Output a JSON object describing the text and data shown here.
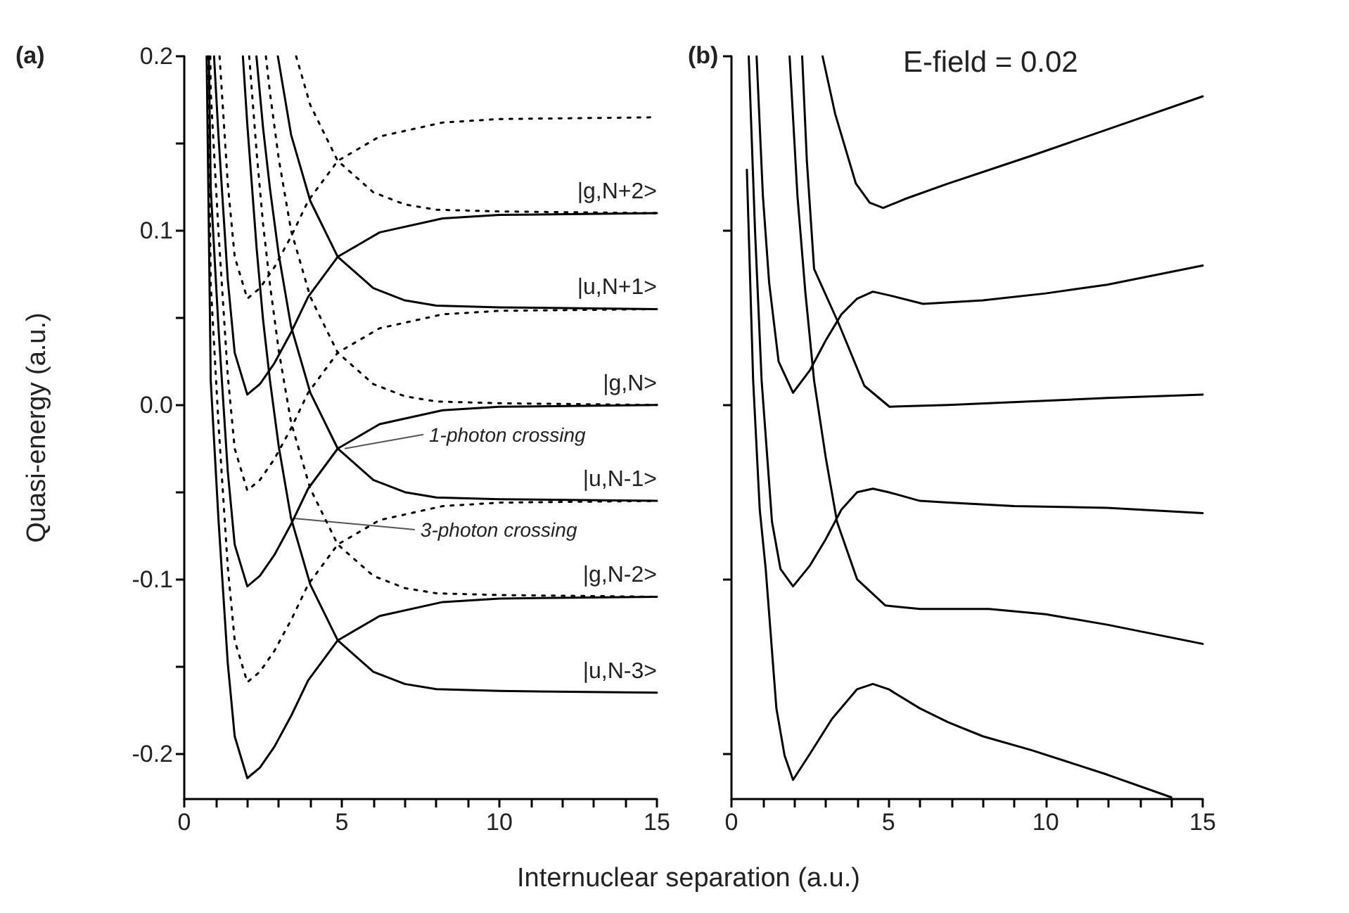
{
  "chart_data": [
    {
      "type": "line",
      "title": "(a)",
      "xlabel": "Internuclear separation (a.u.)",
      "ylabel": "Quasi-energy (a.u.)",
      "marker": "none",
      "xlim": [
        0,
        15
      ],
      "ylim": [
        -0.226,
        0.2
      ],
      "xticks": [
        0,
        {
          "value": 1,
          "label": null
        },
        {
          "value": 2,
          "label": null
        },
        {
          "value": 3,
          "label": null
        },
        {
          "value": 4,
          "label": null
        },
        5,
        {
          "value": 6,
          "label": null
        },
        {
          "value": 7,
          "label": null
        },
        {
          "value": 8,
          "label": null
        },
        {
          "value": 9,
          "label": null
        },
        10,
        {
          "value": 11,
          "label": null
        },
        {
          "value": 12,
          "label": null
        },
        {
          "value": 13,
          "label": null
        },
        {
          "value": 14,
          "label": null
        },
        15
      ],
      "yticks": [
        -0.2,
        {
          "value": -0.15,
          "label": null
        },
        -0.1,
        {
          "value": -0.05,
          "label": null
        },
        {
          "value": 0,
          "label": "0.0"
        },
        {
          "value": 0.05,
          "label": null
        },
        0.1,
        {
          "value": 0.15,
          "label": null
        },
        0.2
      ],
      "annotations": [
        {
          "text": "1-photon crossing",
          "x": 5.0,
          "y": -0.025
        },
        {
          "text": "3-photon crossing",
          "x": 3.39,
          "y": -0.065
        }
      ],
      "series": [
        {
          "name": "|g,N+2>",
          "color": "#000000",
          "line_style": "solid",
          "x": [
            0.945,
            1.09,
            1.38,
            1.6,
            2,
            2.4,
            2.86,
            3.4,
            3.93,
            4.87,
            6.2,
            8.2,
            10,
            15
          ],
          "values": [
            0.2,
            0.153,
            0.072,
            0.03,
            0.006,
            0.012,
            0.024,
            0.042,
            0.062,
            0.085,
            0.099,
            0.107,
            0.109,
            0.11
          ]
        },
        {
          "name": "|u,N+1>",
          "color": "#000000",
          "line_style": "solid",
          "x": [
            2.97,
            3.39,
            4,
            4.87,
            6,
            7,
            8,
            10,
            15
          ],
          "values": [
            0.2,
            0.155,
            0.117,
            0.085,
            0.067,
            0.06,
            0.057,
            0.056,
            0.055
          ]
        },
        {
          "name": "|g,N>",
          "color": "#000000",
          "line_style": "solid",
          "x": [
            0.78,
            0.84,
            1.09,
            1.38,
            1.6,
            2,
            2.4,
            2.86,
            3.4,
            3.93,
            4.87,
            6.2,
            8.2,
            10,
            15
          ],
          "values": [
            0.2,
            0.124,
            0.043,
            -0.038,
            -0.08,
            -0.104,
            -0.098,
            -0.086,
            -0.068,
            -0.048,
            -0.025,
            -0.011,
            -0.003,
            -0.001,
            0
          ]
        },
        {
          "name": "|u,N-1>",
          "color": "#000000",
          "line_style": "solid",
          "x": [
            2.29,
            2.5,
            2.72,
            3,
            3.39,
            4,
            4.87,
            6,
            7,
            8,
            10,
            15
          ],
          "values": [
            0.2,
            0.159,
            0.124,
            0.086,
            0.045,
            0.007,
            -0.025,
            -0.043,
            -0.05,
            -0.053,
            -0.054,
            -0.055
          ]
        },
        {
          "name": "|g,N-2>",
          "color": "#000000",
          "line_style": "solid",
          "x": [
            0.71,
            0.84,
            1.09,
            1.38,
            1.6,
            2,
            2.4,
            2.86,
            3.4,
            3.93,
            4.87,
            6.2,
            8.2,
            10,
            15
          ],
          "values": [
            0.2,
            0.014,
            -0.067,
            -0.148,
            -0.19,
            -0.214,
            -0.208,
            -0.196,
            -0.178,
            -0.158,
            -0.135,
            -0.121,
            -0.113,
            -0.111,
            -0.11
          ]
        },
        {
          "name": "|u,N-3>",
          "color": "#000000",
          "line_style": "solid",
          "x": [
            1.86,
            2,
            2.3,
            2.5,
            2.72,
            3,
            3.39,
            4,
            4.87,
            6,
            7,
            8,
            10,
            15
          ],
          "values": [
            0.2,
            0.161,
            0.089,
            0.049,
            0.014,
            -0.024,
            -0.065,
            -0.103,
            -0.135,
            -0.153,
            -0.16,
            -0.163,
            -0.164,
            -0.165
          ]
        },
        {
          "color": "#000000",
          "line_style": "dotted",
          "x": [
            1.12,
            1.38,
            1.6,
            2,
            2.4,
            2.86,
            3.4,
            3.93,
            4.87,
            6.2,
            8.2,
            10,
            15
          ],
          "values": [
            0.2,
            0.127,
            0.085,
            0.061,
            0.067,
            0.079,
            0.097,
            0.117,
            0.14,
            0.154,
            0.162,
            0.164,
            0.165
          ]
        },
        {
          "color": "#000000",
          "line_style": "dotted",
          "x": [
            0.825,
            0.84,
            1.09,
            1.38,
            1.6,
            2,
            2.4,
            2.86,
            3.4,
            3.93,
            4.87,
            6.2,
            8.2,
            10,
            15
          ],
          "values": [
            0.2,
            0.179,
            0.098,
            0.017,
            -0.025,
            -0.049,
            -0.043,
            -0.031,
            -0.013,
            0.007,
            0.03,
            0.044,
            0.052,
            0.054,
            0.055
          ]
        },
        {
          "color": "#000000",
          "line_style": "dotted",
          "x": [
            0.75,
            0.84,
            1.09,
            1.38,
            1.6,
            2,
            2.4,
            2.86,
            3.4,
            3.93,
            4.87,
            6.2,
            8.2,
            10,
            15
          ],
          "values": [
            0.2,
            0.069,
            -0.012,
            -0.093,
            -0.135,
            -0.159,
            -0.153,
            -0.141,
            -0.123,
            -0.103,
            -0.08,
            -0.066,
            -0.058,
            -0.056,
            -0.055
          ]
        },
        {
          "color": "#000000",
          "line_style": "dotted",
          "x": [
            3.55,
            4,
            4.87,
            6,
            7,
            8,
            10,
            15
          ],
          "values": [
            0.2,
            0.172,
            0.14,
            0.122,
            0.115,
            0.112,
            0.111,
            0.11
          ]
        },
        {
          "color": "#000000",
          "line_style": "dotted",
          "x": [
            2.59,
            2.72,
            3,
            3.39,
            4,
            4.87,
            6,
            7,
            8,
            10,
            15
          ],
          "values": [
            0.2,
            0.179,
            0.141,
            0.1,
            0.062,
            0.03,
            0.012,
            0.005,
            0.002,
            0.001,
            0
          ]
        },
        {
          "color": "#000000",
          "line_style": "dotted",
          "x": [
            2.06,
            2.3,
            2.5,
            2.72,
            3,
            3.39,
            4,
            4.87,
            6,
            7,
            8,
            10,
            15
          ],
          "values": [
            0.2,
            0.144,
            0.104,
            0.069,
            0.031,
            -0.01,
            -0.048,
            -0.08,
            -0.098,
            -0.105,
            -0.108,
            -0.109,
            -0.11
          ]
        }
      ]
    },
    {
      "type": "line",
      "title": "(b)",
      "marker": "none",
      "tick_labels": "x",
      "xlim": [
        0,
        15
      ],
      "ylim": [
        -0.226,
        0.2
      ],
      "xticks": [
        0,
        {
          "value": 1,
          "label": null
        },
        {
          "value": 2,
          "label": null
        },
        {
          "value": 3,
          "label": null
        },
        {
          "value": 4,
          "label": null
        },
        5,
        {
          "value": 6,
          "label": null
        },
        {
          "value": 7,
          "label": null
        },
        {
          "value": 8,
          "label": null
        },
        {
          "value": 9,
          "label": null
        },
        10,
        {
          "value": 11,
          "label": null
        },
        {
          "value": 12,
          "label": null
        },
        {
          "value": 13,
          "label": null
        },
        {
          "value": 14,
          "label": null
        },
        15
      ],
      "yticks": [
        -0.2,
        -0.1,
        0,
        0.1,
        0.2
      ],
      "annotations": [
        "E-field = 0.02"
      ],
      "series": [
        {
          "color": "#000000",
          "line_style": "solid",
          "x": [
            2.9,
            3.3,
            3.96,
            4.4,
            4.83,
            5.5,
            6.9,
            9.56,
            11.96,
            15
          ],
          "values": [
            0.2,
            0.167,
            0.127,
            0.116,
            0.113,
            0.118,
            0.127,
            0.143,
            0.158,
            0.177
          ]
        },
        {
          "color": "#000000",
          "line_style": "solid",
          "x": [
            0.8,
            1.0,
            1.2,
            1.5,
            1.96,
            2.5,
            3,
            3.5,
            4,
            4.5,
            5,
            6.1,
            8,
            10,
            11.96,
            15
          ],
          "values": [
            0.2,
            0.12,
            0.07,
            0.025,
            0.007,
            0.02,
            0.037,
            0.052,
            0.061,
            0.065,
            0.063,
            0.058,
            0.06,
            0.064,
            0.069,
            0.08
          ]
        },
        {
          "color": "#000000",
          "line_style": "solid",
          "x": [
            2.25,
            2.4,
            2.63,
            3.43,
            4.23,
            5.03,
            6.9,
            11.96,
            15
          ],
          "values": [
            0.2,
            0.14,
            0.078,
            0.046,
            0.011,
            -0.001,
            0.0,
            0.004,
            0.006
          ]
        },
        {
          "color": "#000000",
          "line_style": "solid",
          "x": [
            0.55,
            0.75,
            0.96,
            1.29,
            1.56,
            1.96,
            2.5,
            3,
            3.5,
            4,
            4.5,
            5,
            6,
            6.9,
            9,
            11.96,
            15
          ],
          "values": [
            0.2,
            0.1,
            0.014,
            -0.067,
            -0.094,
            -0.104,
            -0.092,
            -0.077,
            -0.06,
            -0.05,
            -0.048,
            -0.05,
            -0.055,
            -0.056,
            -0.058,
            -0.059,
            -0.062
          ]
        },
        {
          "color": "#000000",
          "line_style": "solid",
          "x": [
            1.85,
            2.1,
            2.35,
            2.63,
            3.0,
            3.36,
            4,
            4.9,
            6,
            8.2,
            10,
            11.96,
            15
          ],
          "values": [
            0.2,
            0.12,
            0.065,
            0.014,
            -0.03,
            -0.067,
            -0.1,
            -0.115,
            -0.117,
            -0.117,
            -0.12,
            -0.126,
            -0.137
          ]
        },
        {
          "color": "#000000",
          "line_style": "solid",
          "x": [
            0.49,
            0.69,
            0.9,
            1.09,
            1.43,
            1.69,
            1.96,
            2.5,
            3.2,
            4,
            4.5,
            5,
            6,
            6.9,
            8,
            9.56,
            11.96,
            14
          ],
          "values": [
            0.135,
            0.014,
            -0.06,
            -0.094,
            -0.174,
            -0.201,
            -0.215,
            -0.2,
            -0.18,
            -0.163,
            -0.16,
            -0.163,
            -0.174,
            -0.182,
            -0.19,
            -0.198,
            -0.212,
            -0.225
          ]
        }
      ]
    }
  ]
}
